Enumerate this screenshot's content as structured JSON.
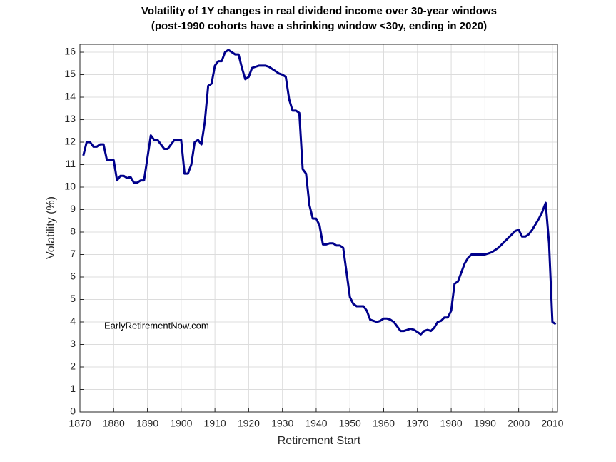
{
  "chart_data": {
    "type": "line",
    "title": "Volatility of 1Y changes in real dividend income over 30-year windows",
    "subtitle": "(post-1990 cohorts have a shrinking window <30y, ending in 2020)",
    "x_label": "Retirement Start",
    "y_label": "Volatility (%)",
    "annotation": "EarlyRetirementNow.com",
    "x": [
      1871,
      1872,
      1873,
      1874,
      1875,
      1876,
      1877,
      1878,
      1879,
      1880,
      1881,
      1882,
      1883,
      1884,
      1885,
      1886,
      1887,
      1888,
      1889,
      1890,
      1891,
      1892,
      1893,
      1894,
      1895,
      1896,
      1897,
      1898,
      1899,
      1900,
      1901,
      1902,
      1903,
      1904,
      1905,
      1906,
      1907,
      1908,
      1909,
      1910,
      1911,
      1912,
      1913,
      1914,
      1915,
      1916,
      1917,
      1918,
      1919,
      1920,
      1921,
      1922,
      1923,
      1924,
      1925,
      1926,
      1927,
      1928,
      1929,
      1930,
      1931,
      1932,
      1933,
      1934,
      1935,
      1936,
      1937,
      1938,
      1939,
      1940,
      1941,
      1942,
      1943,
      1944,
      1945,
      1946,
      1947,
      1948,
      1949,
      1950,
      1951,
      1952,
      1953,
      1954,
      1955,
      1956,
      1957,
      1958,
      1959,
      1960,
      1961,
      1962,
      1963,
      1964,
      1965,
      1966,
      1967,
      1968,
      1969,
      1970,
      1971,
      1972,
      1973,
      1974,
      1975,
      1976,
      1977,
      1978,
      1979,
      1980,
      1981,
      1982,
      1983,
      1984,
      1985,
      1986,
      1987,
      1988,
      1989,
      1990,
      1991,
      1992,
      1993,
      1994,
      1995,
      1996,
      1997,
      1998,
      1999,
      2000,
      2001,
      2002,
      2003,
      2004,
      2005,
      2006,
      2007,
      2008,
      2009,
      2010,
      2011
    ],
    "series": [
      {
        "color": "#00008b",
        "values": [
          11.4,
          12.0,
          12.0,
          11.8,
          11.8,
          11.9,
          11.9,
          11.2,
          11.2,
          11.2,
          10.3,
          10.5,
          10.5,
          10.4,
          10.45,
          10.2,
          10.2,
          10.3,
          10.3,
          11.3,
          12.3,
          12.1,
          12.1,
          11.9,
          11.7,
          11.7,
          11.9,
          12.1,
          12.1,
          12.1,
          10.6,
          10.6,
          11.0,
          12.0,
          12.1,
          11.9,
          12.9,
          14.5,
          14.6,
          15.4,
          15.6,
          15.6,
          16.0,
          16.1,
          16.0,
          15.9,
          15.9,
          15.3,
          14.8,
          14.9,
          15.3,
          15.35,
          15.4,
          15.4,
          15.4,
          15.35,
          15.25,
          15.15,
          15.05,
          15.0,
          14.9,
          13.9,
          13.4,
          13.4,
          13.3,
          10.8,
          10.6,
          9.2,
          8.6,
          8.6,
          8.3,
          7.45,
          7.45,
          7.5,
          7.5,
          7.4,
          7.4,
          7.3,
          6.2,
          5.1,
          4.8,
          4.7,
          4.7,
          4.7,
          4.5,
          4.1,
          4.05,
          4.0,
          4.05,
          4.15,
          4.15,
          4.1,
          4.0,
          3.8,
          3.6,
          3.6,
          3.65,
          3.7,
          3.65,
          3.55,
          3.45,
          3.6,
          3.65,
          3.6,
          3.75,
          4.0,
          4.05,
          4.2,
          4.2,
          4.5,
          5.7,
          5.8,
          6.2,
          6.6,
          6.85,
          7.0,
          7.0,
          7.0,
          7.0,
          7.0,
          7.05,
          7.1,
          7.2,
          7.3,
          7.45,
          7.6,
          7.75,
          7.9,
          8.05,
          8.1,
          7.8,
          7.8,
          7.9,
          8.1,
          8.35,
          8.6,
          8.9,
          9.3,
          7.5,
          4.0,
          3.9
        ]
      }
    ],
    "xlim": [
      1870,
      2011.5
    ],
    "ylim": [
      0,
      16.35
    ],
    "xticks": [
      1870,
      1880,
      1890,
      1900,
      1910,
      1920,
      1930,
      1940,
      1950,
      1960,
      1970,
      1980,
      1990,
      2000,
      2010
    ],
    "yticks": [
      0,
      1,
      2,
      3,
      4,
      5,
      6,
      7,
      8,
      9,
      10,
      11,
      12,
      13,
      14,
      15,
      16
    ],
    "grid": true
  }
}
